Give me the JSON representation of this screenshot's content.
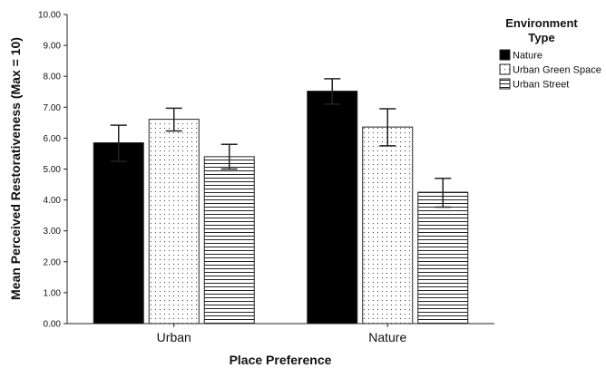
{
  "chart_data": {
    "type": "bar",
    "categories": [
      "Urban",
      "Nature"
    ],
    "xlabel": "Place Preference",
    "ylabel": "Mean Perceived Restorativeness (Max = 10)",
    "ylim": [
      0,
      10
    ],
    "yticks": [
      "0.00",
      "1.00",
      "2.00",
      "3.00",
      "4.00",
      "5.00",
      "6.00",
      "7.00",
      "8.00",
      "9.00",
      "10.00"
    ],
    "grid": false,
    "legend": {
      "title_lines": [
        "Environment",
        "Type"
      ],
      "placement": "top-right"
    },
    "series": [
      {
        "name": "Nature",
        "values": [
          5.85,
          7.52
        ],
        "error_low": [
          5.25,
          7.1
        ],
        "error_high": [
          6.42,
          7.92
        ],
        "pattern": "solid",
        "color": "#000000"
      },
      {
        "name": "Urban Green Space",
        "values": [
          6.61,
          6.36
        ],
        "error_low": [
          6.23,
          5.75
        ],
        "error_high": [
          6.97,
          6.95
        ],
        "pattern": "dots",
        "color": "#ffffff"
      },
      {
        "name": "Urban Street",
        "values": [
          5.4,
          4.25
        ],
        "error_low": [
          5.0,
          3.77
        ],
        "error_high": [
          5.8,
          4.7
        ],
        "pattern": "horizontal-lines",
        "color": "#ffffff"
      }
    ]
  }
}
